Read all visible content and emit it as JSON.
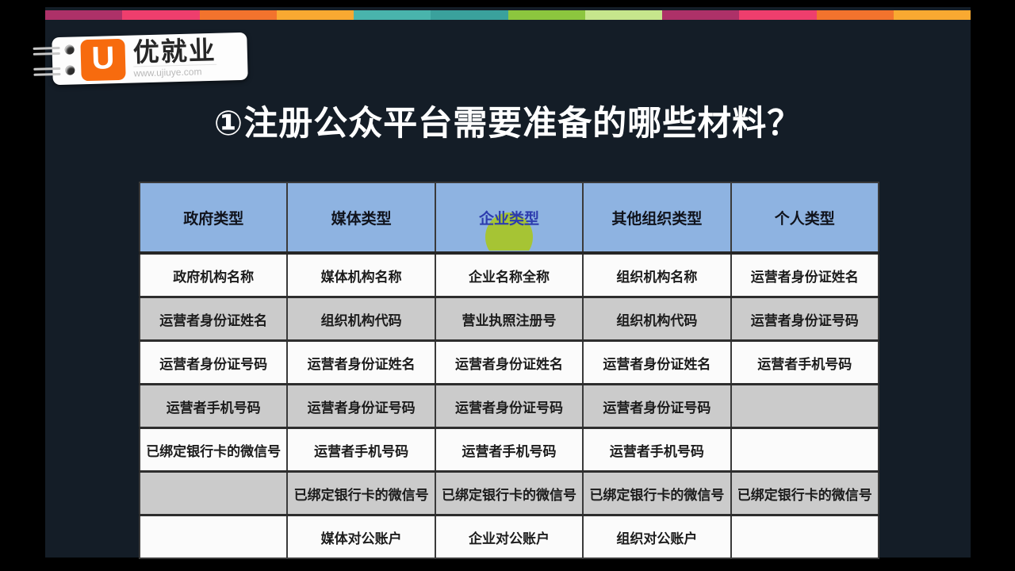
{
  "top_bar": {
    "colors": [
      "#ad3168",
      "#ee3e6d",
      "#f2732d",
      "#f9a931",
      "#49b4ac",
      "#3aa19c",
      "#8cc63e",
      "#c6e68c",
      "#ad3168",
      "#ee3e6d",
      "#f2732d",
      "#f9a931"
    ]
  },
  "logo": {
    "u_letter": "U",
    "brand": "优就业",
    "website": "www.ujiuye.com",
    "tile_color": "#f76b0e"
  },
  "title": {
    "text": "①注册公众平台需要准备的哪些材料？"
  },
  "table": {
    "headers": [
      "政府类型",
      "媒体类型",
      "企业类型",
      "其他组织类型",
      "个人类型"
    ],
    "highlight": {
      "column": "企业类型",
      "circle_color": "#a6c434",
      "text_color": "#2d3cae"
    },
    "rows": [
      [
        "政府机构名称",
        "媒体机构名称",
        "企业名称全称",
        "组织机构名称",
        "运营者身份证姓名"
      ],
      [
        "运营者身份证姓名",
        "组织机构代码",
        "营业执照注册号",
        "组织机构代码",
        "运营者身份证号码"
      ],
      [
        "运营者身份证号码",
        "运营者身份证姓名",
        "运营者身份证姓名",
        "运营者身份证姓名",
        "运营者手机号码"
      ],
      [
        "运营者手机号码",
        "运营者身份证号码",
        "运营者身份证号码",
        "运营者身份证号码",
        ""
      ],
      [
        "已绑定银行卡的微信号",
        "运营者手机号码",
        "运营者手机号码",
        "运营者手机号码",
        ""
      ],
      [
        "",
        "已绑定银行卡的微信号",
        "已绑定银行卡的微信号",
        "已绑定银行卡的微信号",
        "已绑定银行卡的微信号"
      ],
      [
        "",
        "媒体对公账户",
        "企业对公账户",
        "组织对公账户",
        ""
      ]
    ]
  },
  "colors": {
    "frame_background": "#141d27",
    "header_bg": "#8eb3e1",
    "row_bg": "#fbfbfb",
    "row_alt_bg": "#cbcbcb",
    "border": "#3a3a3a",
    "title_text": "#ffffff"
  }
}
